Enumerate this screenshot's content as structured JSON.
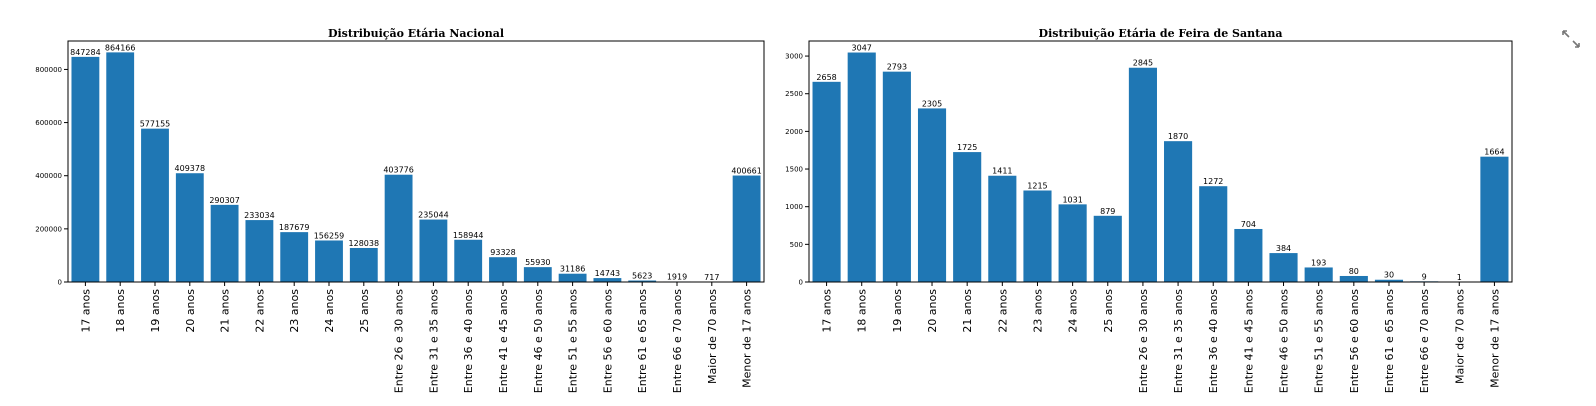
{
  "colors": {
    "bar": "#1f77b4",
    "axis": "#000000",
    "text": "#000000"
  },
  "expand_icon": "expand-icon",
  "chart_data": [
    {
      "type": "bar",
      "title": "Distribuição Etária Nacional",
      "xlabel": "",
      "ylabel": "",
      "grid": false,
      "ylim": [
        0,
        907000
      ],
      "yticks": [
        0,
        200000,
        400000,
        600000,
        800000
      ],
      "categories": [
        "17 anos",
        "18 anos",
        "19 anos",
        "20 anos",
        "21 anos",
        "22 anos",
        "23 anos",
        "24 anos",
        "25 anos",
        "Entre 26 e 30 anos",
        "Entre 31 e 35 anos",
        "Entre 36 e 40 anos",
        "Entre 41 e 45 anos",
        "Entre 46 e 50 anos",
        "Entre 51 e 55 anos",
        "Entre 56 e 60 anos",
        "Entre 61 e 65 anos",
        "Entre 66 e 70 anos",
        "Maior de 70 anos",
        "Menor de 17 anos"
      ],
      "values": [
        847284,
        864166,
        577155,
        409378,
        290307,
        233034,
        187679,
        156259,
        128038,
        403776,
        235044,
        158944,
        93328,
        55930,
        31186,
        14743,
        5623,
        1919,
        717,
        400661
      ]
    },
    {
      "type": "bar",
      "title": "Distribuição Etária de Feira de Santana",
      "xlabel": "",
      "ylabel": "",
      "grid": false,
      "ylim": [
        0,
        3200
      ],
      "yticks": [
        0,
        500,
        1000,
        1500,
        2000,
        2500,
        3000
      ],
      "categories": [
        "17 anos",
        "18 anos",
        "19 anos",
        "20 anos",
        "21 anos",
        "22 anos",
        "23 anos",
        "24 anos",
        "25 anos",
        "Entre 26 e 30 anos",
        "Entre 31 e 35 anos",
        "Entre 36 e 40 anos",
        "Entre 41 e 45 anos",
        "Entre 46 e 50 anos",
        "Entre 51 e 55 anos",
        "Entre 56 e 60 anos",
        "Entre 61 e 65 anos",
        "Entre 66 e 70 anos",
        "Maior de 70 anos",
        "Menor de 17 anos"
      ],
      "values": [
        2658,
        3047,
        2793,
        2305,
        1725,
        1411,
        1215,
        1031,
        879,
        2845,
        1870,
        1272,
        704,
        384,
        193,
        80,
        30,
        9,
        1,
        1664
      ]
    }
  ]
}
